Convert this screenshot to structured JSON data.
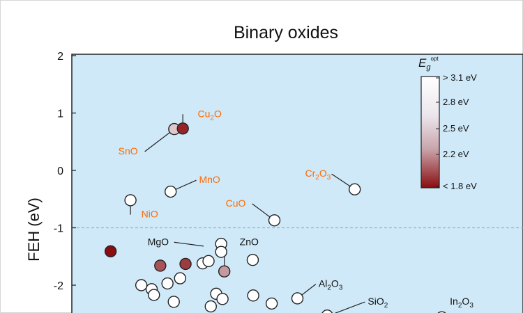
{
  "chart_data": {
    "type": "scatter",
    "title": "Binary oxides",
    "xlabel": "",
    "ylabel": "FEH (eV)",
    "ylim": [
      -2.45,
      2.0
    ],
    "yticks": [
      2,
      1,
      0,
      -1,
      -2
    ],
    "ytick_labels": [
      "2",
      "1",
      "0",
      "-1",
      "-2"
    ],
    "xlim": [
      0,
      1
    ],
    "reference_line": {
      "y": -1.0,
      "style": "dashed"
    },
    "grid": false,
    "plot_background": "#cfe9f8",
    "colorbar": {
      "title_main": "E",
      "title_sub": "g",
      "title_sup": "opt",
      "ticks": [
        3.1,
        2.8,
        2.5,
        2.2,
        1.8
      ],
      "labels": [
        "> 3.1 eV",
        "2.8 eV",
        "2.5 eV",
        "2.2 eV",
        "< 1.8 eV"
      ],
      "colors": {
        "high": "#ffffff",
        "mid": "#c9a5ac",
        "low": "#8a0d10"
      },
      "placement": "top-right"
    },
    "points": [
      {
        "x": 0.227,
        "y": 0.72,
        "eg": 2.7
      },
      {
        "x": 0.246,
        "y": 0.73,
        "eg": 1.9
      },
      {
        "x": 0.219,
        "y": -0.37,
        "eg": 3.3
      },
      {
        "x": 0.13,
        "y": -0.52,
        "eg": 3.3
      },
      {
        "x": 0.627,
        "y": -0.33,
        "eg": 3.3
      },
      {
        "x": 0.449,
        "y": -0.87,
        "eg": 3.3
      },
      {
        "x": 0.086,
        "y": -1.41,
        "eg": 1.8
      },
      {
        "x": 0.196,
        "y": -1.66,
        "eg": 2.1
      },
      {
        "x": 0.252,
        "y": -1.63,
        "eg": 2.0
      },
      {
        "x": 0.331,
        "y": -1.28,
        "eg": 3.3
      },
      {
        "x": 0.331,
        "y": -1.42,
        "eg": 3.3
      },
      {
        "x": 0.338,
        "y": -1.76,
        "eg": 2.4
      },
      {
        "x": 0.401,
        "y": -1.56,
        "eg": 3.3
      },
      {
        "x": 0.29,
        "y": -1.62,
        "eg": 3.3
      },
      {
        "x": 0.303,
        "y": -1.58,
        "eg": 3.3
      },
      {
        "x": 0.154,
        "y": -2.0,
        "eg": 3.3
      },
      {
        "x": 0.177,
        "y": -2.07,
        "eg": 3.3
      },
      {
        "x": 0.182,
        "y": -2.17,
        "eg": 3.3
      },
      {
        "x": 0.212,
        "y": -1.97,
        "eg": 3.3
      },
      {
        "x": 0.24,
        "y": -1.88,
        "eg": 3.3
      },
      {
        "x": 0.226,
        "y": -2.29,
        "eg": 3.3
      },
      {
        "x": 0.32,
        "y": -2.15,
        "eg": 3.3
      },
      {
        "x": 0.334,
        "y": -2.24,
        "eg": 3.3
      },
      {
        "x": 0.308,
        "y": -2.37,
        "eg": 3.3
      },
      {
        "x": 0.402,
        "y": -2.18,
        "eg": 3.3
      },
      {
        "x": 0.443,
        "y": -2.32,
        "eg": 3.3
      },
      {
        "x": 0.5,
        "y": -2.23,
        "eg": 3.3
      },
      {
        "x": 0.566,
        "y": -2.53,
        "eg": 3.3
      },
      {
        "x": 0.82,
        "y": -2.56,
        "eg": 3.3
      }
    ],
    "annotations": [
      {
        "label": "Cu",
        "sub": "2",
        "suffix": "O",
        "color": "orange",
        "tx": 0.279,
        "ty": 0.93,
        "px": 0.246,
        "py": 0.73
      },
      {
        "label": "SnO",
        "sub": "",
        "suffix": "",
        "color": "orange",
        "tx": 0.103,
        "ty": 0.28,
        "px": 0.227,
        "py": 0.72
      },
      {
        "label": "MnO",
        "sub": "",
        "suffix": "",
        "color": "orange",
        "tx": 0.282,
        "ty": -0.22,
        "px": 0.219,
        "py": -0.37
      },
      {
        "label": "NiO",
        "sub": "",
        "suffix": "",
        "color": "orange",
        "tx": 0.154,
        "ty": -0.82,
        "px": 0.13,
        "py": -0.52
      },
      {
        "label": "Cr",
        "sub": "2",
        "suffix": "O",
        "sub2": "3",
        "color": "orange",
        "tx": 0.517,
        "ty": -0.11,
        "px": 0.627,
        "py": -0.33
      },
      {
        "label": "CuO",
        "sub": "",
        "suffix": "",
        "color": "orange",
        "tx": 0.341,
        "ty": -0.63,
        "px": 0.449,
        "py": -0.87
      },
      {
        "label": "MgO",
        "sub": "",
        "suffix": "",
        "color": "black",
        "tx": 0.168,
        "ty": -1.3,
        "px": 0.292,
        "py": -1.32
      },
      {
        "label": "ZnO",
        "sub": "",
        "suffix": "",
        "color": "black",
        "tx": 0.372,
        "ty": -1.3,
        "px": 0.338,
        "py": -1.76
      },
      {
        "label": "Al",
        "sub": "2",
        "suffix": "O",
        "sub2": "3",
        "color": "black",
        "tx": 0.547,
        "ty": -2.03,
        "px": 0.5,
        "py": -2.23
      },
      {
        "label": "SiO",
        "sub": "2",
        "suffix": "",
        "color": "black",
        "tx": 0.656,
        "ty": -2.34,
        "px": 0.573,
        "py": -2.52
      },
      {
        "label": "In",
        "sub": "2",
        "suffix": "O",
        "sub2": "3",
        "color": "black",
        "tx": 0.838,
        "ty": -2.34,
        "px": null,
        "py": null
      }
    ],
    "label_colors": {
      "orange": "#ff6a00",
      "black": "#111111"
    }
  }
}
